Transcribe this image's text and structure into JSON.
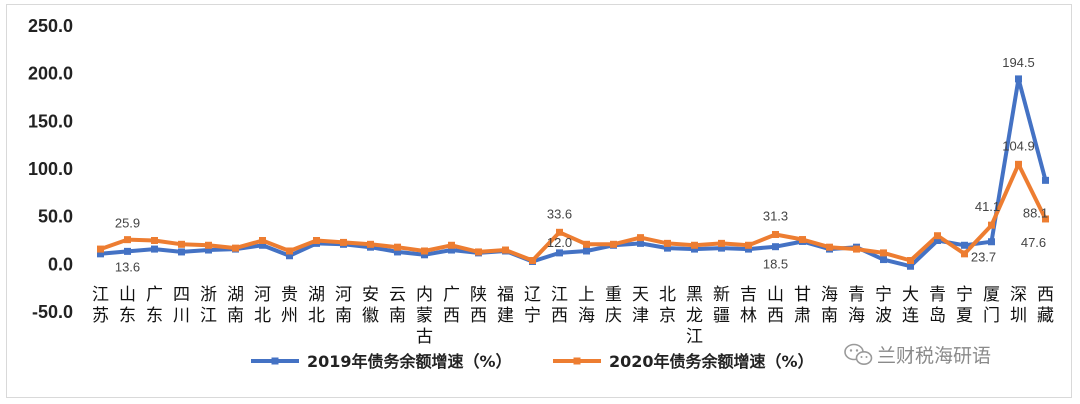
{
  "chart_data": {
    "type": "line",
    "ylim": [
      -50,
      250
    ],
    "yticks": [
      "-50.0",
      "0.0",
      "50.0",
      "100.0",
      "150.0",
      "200.0",
      "250.0"
    ],
    "ytick_values": [
      -50,
      0,
      50,
      100,
      150,
      200,
      250
    ],
    "grid": false,
    "legend_position": "bottom",
    "categories": [
      "江苏",
      "山东",
      "广东",
      "四川",
      "浙江",
      "湖南",
      "河北",
      "贵州",
      "湖北",
      "河南",
      "安徽",
      "云南",
      "内蒙古",
      "广西",
      "陕西",
      "福建",
      "辽宁",
      "江西",
      "上海",
      "重庆",
      "天津",
      "北京",
      "黑龙江",
      "新疆",
      "吉林",
      "山西",
      "甘肃",
      "海南",
      "青海",
      "宁波",
      "大连",
      "青岛",
      "宁夏",
      "厦门",
      "深圳",
      "西藏"
    ],
    "series": [
      {
        "name": "2019年债务余额增速（%）",
        "color": "#4472c4",
        "values": [
          11,
          13.6,
          16,
          13,
          15,
          16,
          20,
          9,
          22,
          21,
          18,
          13,
          10,
          15,
          12,
          14,
          3,
          12.0,
          14,
          20,
          22,
          17,
          16,
          17,
          16,
          18.5,
          24,
          16,
          18,
          5,
          -2,
          25,
          20,
          23.7,
          194.5,
          88.1
        ]
      },
      {
        "name": "2020年债务余额增速（%）",
        "color": "#ed7d31",
        "values": [
          16,
          25.9,
          25,
          21,
          20,
          17,
          25,
          14,
          25,
          23,
          21,
          18,
          14,
          20,
          13,
          15,
          4,
          33.6,
          21,
          21,
          28,
          22,
          20,
          22,
          20,
          31.3,
          26,
          18,
          16,
          12,
          4,
          30,
          11,
          41.1,
          104.9,
          47.6
        ]
      }
    ],
    "data_labels": [
      {
        "series": 1,
        "index": 1,
        "text": "25.9"
      },
      {
        "series": 0,
        "index": 1,
        "text": "13.6"
      },
      {
        "series": 1,
        "index": 17,
        "text": "33.6"
      },
      {
        "series": 0,
        "index": 17,
        "text": "12.0"
      },
      {
        "series": 1,
        "index": 25,
        "text": "31.3"
      },
      {
        "series": 0,
        "index": 25,
        "text": "18.5"
      },
      {
        "series": 1,
        "index": 33,
        "text": "41.1"
      },
      {
        "series": 0,
        "index": 33,
        "text": "23.7"
      },
      {
        "series": 0,
        "index": 34,
        "text": "194.5"
      },
      {
        "series": 1,
        "index": 34,
        "text": "104.9"
      },
      {
        "series": 0,
        "index": 35,
        "text": "88.1"
      },
      {
        "series": 1,
        "index": 35,
        "text": "47.6"
      }
    ]
  },
  "watermark": {
    "text": "兰财税海研语",
    "icon": "wechat-icon"
  }
}
